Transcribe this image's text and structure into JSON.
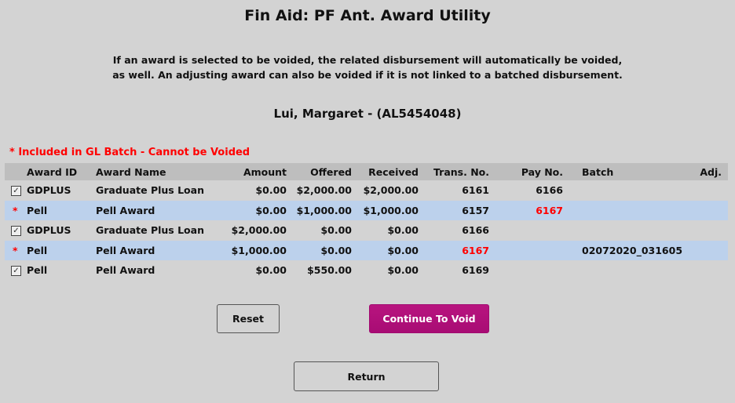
{
  "title": "Fin Aid: PF Ant. Award Utility",
  "note_line1": "If an award is selected to be voided, the related disbursement will automatically be voided,",
  "note_line2": "as well. An adjusting award can also be voided if it is not linked to a batched disbursement.",
  "student": "Lui, Margaret - (AL5454048)",
  "legend": "* Included in GL Batch - Cannot be Voided",
  "columns": [
    "Award ID",
    "Award Name",
    "Amount",
    "Offered",
    "Received",
    "Trans. No.",
    "Pay No.",
    "Batch",
    "Adj."
  ],
  "rows": [
    {
      "mark": "checkbox",
      "checked": true,
      "id": "GDPLUS",
      "name": "Graduate Plus Loan",
      "amount": "$0.00",
      "offered": "$2,000.00",
      "received": "$2,000.00",
      "trans": "6161",
      "pay": "6166",
      "batch": "",
      "adj": ""
    },
    {
      "mark": "*",
      "id": "Pell",
      "name": "Pell Award",
      "amount": "$0.00",
      "offered": "$1,000.00",
      "received": "$1,000.00",
      "trans": "6157",
      "pay": "6167",
      "batch": "",
      "adj": ""
    },
    {
      "mark": "checkbox",
      "checked": true,
      "id": "GDPLUS",
      "name": "Graduate Plus Loan",
      "amount": "$2,000.00",
      "offered": "$0.00",
      "received": "$0.00",
      "trans": "6166",
      "pay": "",
      "batch": "",
      "adj": ""
    },
    {
      "mark": "*",
      "id": "Pell",
      "name": "Pell Award",
      "amount": "$1,000.00",
      "offered": "$0.00",
      "received": "$0.00",
      "trans": "6167",
      "pay": "",
      "batch": "02072020_031605",
      "adj": ""
    },
    {
      "mark": "checkbox",
      "checked": true,
      "id": "Pell",
      "name": "Pell Award",
      "amount": "$0.00",
      "offered": "$550.00",
      "received": "$0.00",
      "trans": "6169",
      "pay": "",
      "batch": "",
      "adj": ""
    }
  ],
  "buttons": {
    "reset": "Reset",
    "continue": "Continue To Void",
    "return": "Return"
  },
  "colors": {
    "accent": "#b0107a",
    "warning": "#ff0000",
    "highlight_row": "#bcd1ec"
  }
}
